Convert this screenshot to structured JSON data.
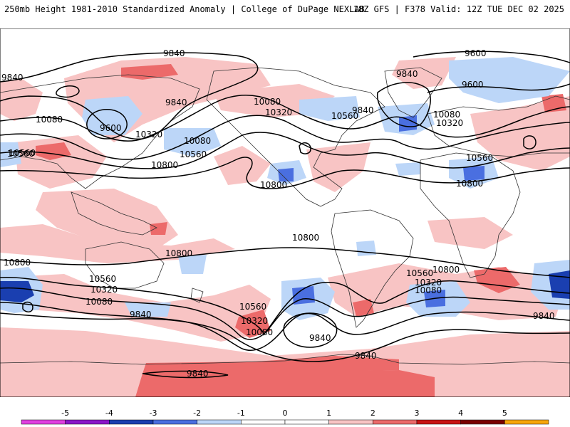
{
  "header": {
    "left": "250mb Height 1981-2010 Standardized Anomaly | College of DuPage NEXLAB",
    "right": "18Z GFS | F378 Valid: 12Z TUE DEC 02 2025"
  },
  "colorbar": {
    "ticks": [
      "-5",
      "-4",
      "-3",
      "-2",
      "-1",
      "0",
      "1",
      "2",
      "3",
      "4",
      "5"
    ],
    "bins": [
      "#e040e0",
      "#8a16c8",
      "#1a3fb0",
      "#4a6fe0",
      "#bcd6f8",
      "#ffffff",
      "#ffffff",
      "#f8c4c4",
      "#ec6a6a",
      "#c81414",
      "#7a0000",
      "#f7a60a"
    ]
  },
  "colors": {
    "neg1": "#bcd6f8",
    "neg2": "#4a6fe0",
    "neg3": "#1a3fb0",
    "pos1": "#f8c4c4",
    "pos2": "#ec6a6a",
    "pos3": "#c81414"
  },
  "contour_labels": [
    {
      "id": "l1",
      "text": "9840"
    },
    {
      "id": "l2",
      "text": "9600"
    },
    {
      "id": "l3",
      "text": "9840"
    },
    {
      "id": "l4",
      "text": "9600"
    },
    {
      "id": "l5",
      "text": "9840"
    },
    {
      "id": "l6",
      "text": "9840"
    },
    {
      "id": "l7",
      "text": "10080"
    },
    {
      "id": "l8",
      "text": "9600"
    },
    {
      "id": "l9",
      "text": "10320"
    },
    {
      "id": "l10",
      "text": "10080"
    },
    {
      "id": "l11",
      "text": "10560"
    },
    {
      "id": "l12",
      "text": "10800"
    },
    {
      "id": "l13",
      "text": "10560"
    },
    {
      "id": "l14",
      "text": "10080"
    },
    {
      "id": "l15",
      "text": "10320"
    },
    {
      "id": "l16",
      "text": "10800"
    },
    {
      "id": "l17",
      "text": "10560"
    },
    {
      "id": "l18",
      "text": "9840"
    },
    {
      "id": "l19",
      "text": "10080"
    },
    {
      "id": "l20",
      "text": "10320"
    },
    {
      "id": "l21",
      "text": "10560"
    },
    {
      "id": "l22",
      "text": "10800"
    },
    {
      "id": "l23",
      "text": "10800"
    },
    {
      "id": "l24",
      "text": "10800"
    },
    {
      "id": "l25",
      "text": "10800"
    },
    {
      "id": "l26",
      "text": "10560"
    },
    {
      "id": "l27",
      "text": "10320"
    },
    {
      "id": "l28",
      "text": "10080"
    },
    {
      "id": "l29",
      "text": "9840"
    },
    {
      "id": "l30",
      "text": "10560"
    },
    {
      "id": "l31",
      "text": "10320"
    },
    {
      "id": "l32",
      "text": "10080"
    },
    {
      "id": "l33",
      "text": "9840"
    },
    {
      "id": "l34",
      "text": "10560"
    },
    {
      "id": "l35",
      "text": "10320"
    },
    {
      "id": "l36",
      "text": "10080"
    },
    {
      "id": "l37",
      "text": "10800"
    },
    {
      "id": "l38",
      "text": "9840"
    },
    {
      "id": "l39",
      "text": "9840"
    },
    {
      "id": "l40",
      "text": "9840"
    },
    {
      "id": "l41",
      "text": "10560"
    }
  ]
}
